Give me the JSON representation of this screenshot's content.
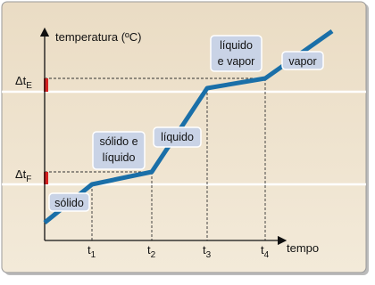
{
  "axes": {
    "y_label": "temperatura (ºC)",
    "x_label": "tempo"
  },
  "y_levels": [
    {
      "base": "Δt",
      "sub": "E"
    },
    {
      "base": "Δt",
      "sub": "F"
    }
  ],
  "x_ticks": [
    {
      "base": "t",
      "sub": "1"
    },
    {
      "base": "t",
      "sub": "2"
    },
    {
      "base": "t",
      "sub": "3"
    },
    {
      "base": "t",
      "sub": "4"
    }
  ],
  "phases": [
    {
      "lines": [
        "sólido"
      ]
    },
    {
      "lines": [
        "sólido e",
        "líquido"
      ]
    },
    {
      "lines": [
        "líquido"
      ]
    },
    {
      "lines": [
        "líquido",
        "e vapor"
      ]
    },
    {
      "lines": [
        "vapor"
      ]
    }
  ]
}
